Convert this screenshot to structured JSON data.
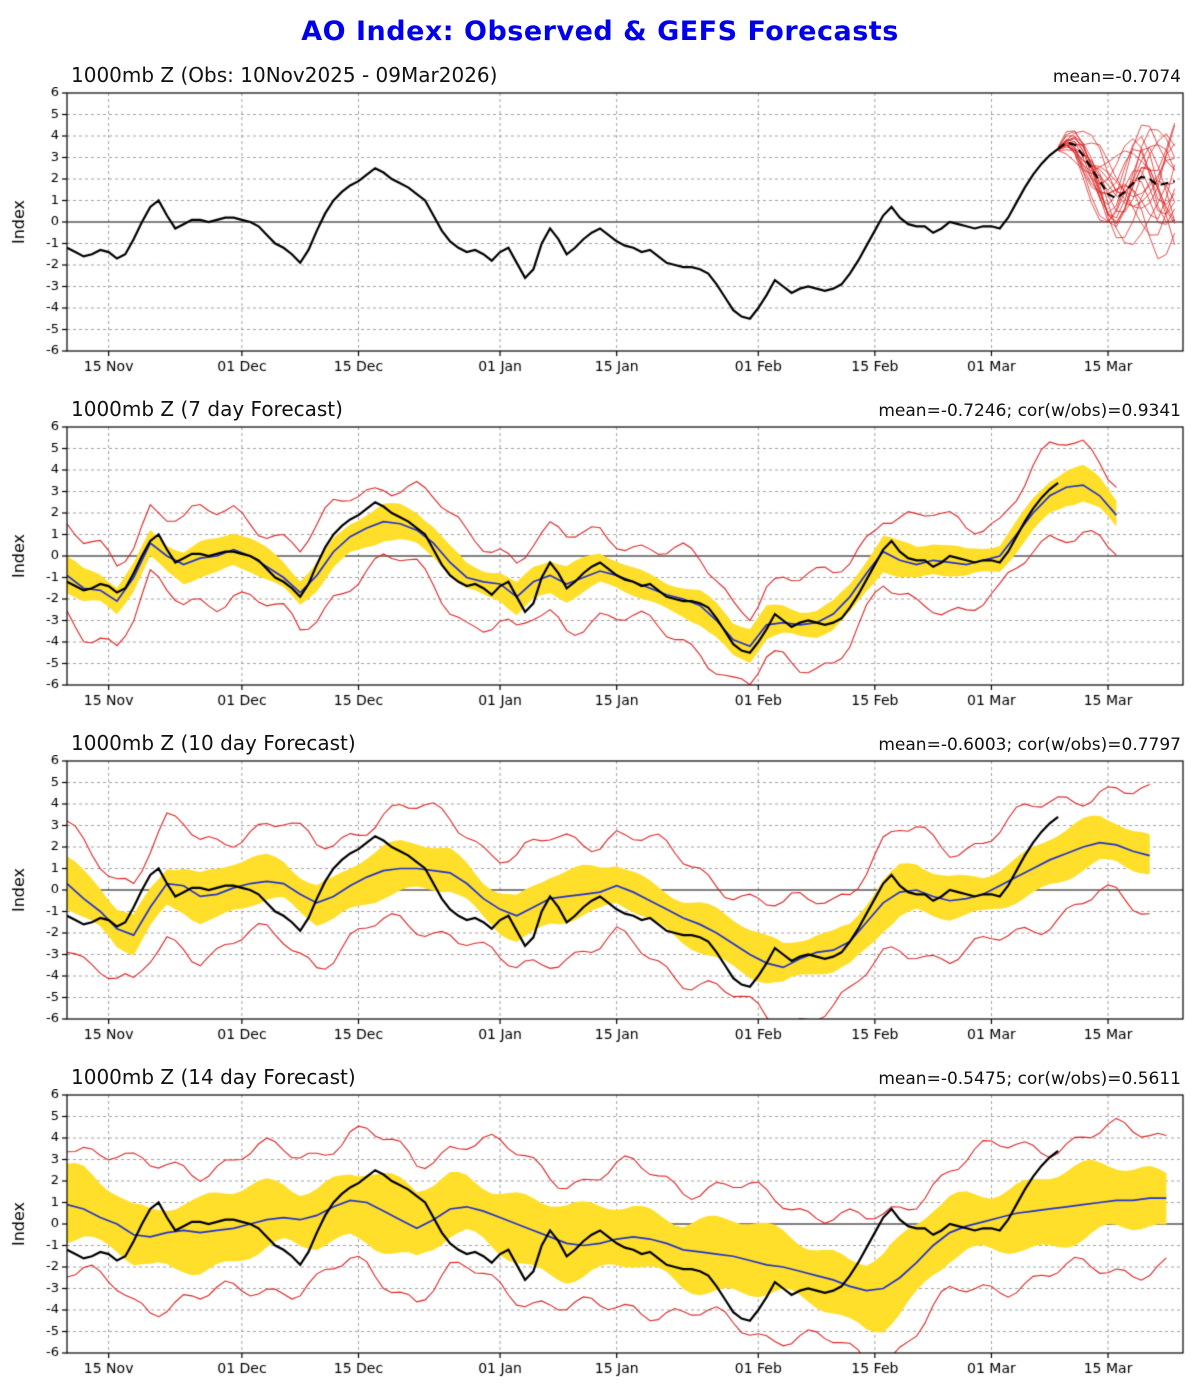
{
  "title": "AO Index: Observed & GEFS Forecasts",
  "chart_data": {
    "type": "line",
    "title": "AO Index: Observed & GEFS Forecasts",
    "ylabel": "Index",
    "ymin": -6,
    "ymax": 6,
    "dmin": 0,
    "dmax": 134,
    "grid": "on",
    "xticks": [
      {
        "d": 5,
        "label": "15 Nov"
      },
      {
        "d": 21,
        "label": "01 Dec"
      },
      {
        "d": 35,
        "label": "15 Dec"
      },
      {
        "d": 52,
        "label": "01 Jan"
      },
      {
        "d": 66,
        "label": "15 Jan"
      },
      {
        "d": 83,
        "label": "01 Feb"
      },
      {
        "d": 97,
        "label": "15 Feb"
      },
      {
        "d": 111,
        "label": "01 Mar"
      },
      {
        "d": 125,
        "label": "15 Mar"
      }
    ],
    "obs_start_date": "10Nov2025",
    "obs_end_date": "09Mar2026",
    "obs": [
      -1.2,
      -1.4,
      -1.6,
      -1.5,
      -1.3,
      -1.4,
      -1.7,
      -1.5,
      -0.8,
      0.0,
      0.7,
      1.0,
      0.3,
      -0.3,
      -0.1,
      0.1,
      0.1,
      0.0,
      0.1,
      0.2,
      0.2,
      0.1,
      0.0,
      -0.2,
      -0.6,
      -1.0,
      -1.2,
      -1.5,
      -1.9,
      -1.3,
      -0.4,
      0.4,
      1.0,
      1.4,
      1.7,
      1.9,
      2.2,
      2.5,
      2.3,
      2.0,
      1.8,
      1.6,
      1.3,
      1.0,
      0.3,
      -0.4,
      -0.9,
      -1.2,
      -1.4,
      -1.3,
      -1.5,
      -1.8,
      -1.4,
      -1.2,
      -1.9,
      -2.6,
      -2.2,
      -1.0,
      -0.3,
      -0.8,
      -1.5,
      -1.2,
      -0.8,
      -0.5,
      -0.3,
      -0.6,
      -0.9,
      -1.1,
      -1.2,
      -1.4,
      -1.3,
      -1.6,
      -1.9,
      -2.0,
      -2.1,
      -2.1,
      -2.2,
      -2.4,
      -2.9,
      -3.5,
      -4.1,
      -4.4,
      -4.5,
      -4.0,
      -3.4,
      -2.7,
      -3.0,
      -3.3,
      -3.1,
      -3.0,
      -3.1,
      -3.2,
      -3.1,
      -2.9,
      -2.4,
      -1.8,
      -1.1,
      -0.4,
      0.3,
      0.7,
      0.2,
      -0.1,
      -0.2,
      -0.2,
      -0.5,
      -0.3,
      0.0,
      -0.1,
      -0.2,
      -0.3,
      -0.2,
      -0.2,
      -0.3,
      0.2,
      0.9,
      1.6,
      2.2,
      2.7,
      3.1,
      3.4
    ],
    "ens_mean": [
      3.4,
      3.7,
      3.6,
      3.1,
      2.5,
      1.9,
      1.3,
      1.1,
      1.4,
      1.8,
      2.1,
      2.0,
      1.7,
      1.8,
      1.9
    ],
    "ens_spread": [
      0.05,
      0.3,
      0.5,
      0.7,
      0.9,
      1.1,
      1.2,
      1.3,
      1.4,
      1.5,
      1.6,
      1.7,
      1.8,
      1.9,
      2.0
    ],
    "panels": [
      {
        "kind": "obs_ensemble",
        "title": "1000mb Z (Obs: 10Nov2025 - 09Mar2026)",
        "stats": "mean=-0.7074",
        "members": 21
      },
      {
        "kind": "forecast",
        "title": "1000mb Z (7 day Forecast)",
        "stats": "mean=-0.7246; cor(w/obs)=0.9341",
        "step": 2,
        "band": 0.7,
        "envelope": 1.9,
        "seed": 1.0,
        "mean_series": [
          -0.9,
          -1.5,
          -1.6,
          -2.1,
          -1.0,
          0.6,
          0.0,
          -0.4,
          -0.1,
          0.0,
          0.3,
          0.0,
          -0.5,
          -1.0,
          -1.7,
          -0.9,
          0.2,
          0.9,
          1.3,
          1.6,
          1.5,
          1.2,
          0.6,
          -0.3,
          -1.0,
          -1.2,
          -1.3,
          -1.9,
          -1.2,
          -0.9,
          -1.3,
          -1.0,
          -0.7,
          -0.9,
          -1.2,
          -1.5,
          -1.8,
          -2.0,
          -2.3,
          -3.0,
          -3.9,
          -4.2,
          -3.2,
          -3.1,
          -3.2,
          -3.1,
          -2.7,
          -1.9,
          -0.8,
          0.2,
          -0.2,
          -0.4,
          -0.2,
          -0.3,
          -0.4,
          -0.2,
          0.0,
          1.0,
          2.0,
          2.8,
          3.2,
          3.3,
          2.8,
          1.9
        ]
      },
      {
        "kind": "forecast",
        "title": "1000mb Z (10 day Forecast)",
        "stats": "mean=-0.6003; cor(w/obs)=0.7797",
        "step": 2,
        "band": 1.0,
        "envelope": 2.6,
        "seed": 2.3,
        "mean_series": [
          0.3,
          -0.4,
          -1.0,
          -1.8,
          -2.1,
          -0.8,
          0.3,
          0.2,
          -0.3,
          -0.2,
          0.1,
          0.3,
          0.4,
          0.3,
          -0.2,
          -0.6,
          -0.3,
          0.2,
          0.6,
          0.9,
          1.0,
          1.0,
          0.9,
          0.8,
          0.3,
          -0.4,
          -0.9,
          -1.2,
          -0.8,
          -0.4,
          -0.3,
          -0.2,
          -0.1,
          0.2,
          -0.1,
          -0.5,
          -0.9,
          -1.3,
          -1.6,
          -2.0,
          -2.5,
          -3.0,
          -3.4,
          -3.6,
          -3.2,
          -2.9,
          -2.8,
          -2.4,
          -1.5,
          -0.6,
          -0.1,
          0.0,
          -0.3,
          -0.5,
          -0.4,
          -0.2,
          0.2,
          0.6,
          1.0,
          1.4,
          1.7,
          2.0,
          2.2,
          2.1,
          1.8,
          1.6
        ]
      },
      {
        "kind": "forecast",
        "title": "1000mb Z (14 day Forecast)",
        "stats": "mean=-0.5475; cor(w/obs)=0.5611",
        "step": 2,
        "band": 1.5,
        "envelope": 3.1,
        "seed": 4.1,
        "mean_series": [
          0.9,
          0.7,
          0.3,
          0.0,
          -0.5,
          -0.6,
          -0.4,
          -0.3,
          -0.4,
          -0.3,
          -0.2,
          0.0,
          0.2,
          0.3,
          0.2,
          0.4,
          0.8,
          1.1,
          1.0,
          0.6,
          0.2,
          -0.2,
          0.2,
          0.7,
          0.8,
          0.6,
          0.3,
          0.0,
          -0.3,
          -0.6,
          -0.9,
          -1.0,
          -0.9,
          -0.7,
          -0.6,
          -0.7,
          -0.9,
          -1.2,
          -1.3,
          -1.4,
          -1.5,
          -1.7,
          -1.9,
          -2.0,
          -2.2,
          -2.4,
          -2.6,
          -2.9,
          -3.1,
          -3.0,
          -2.5,
          -1.8,
          -1.0,
          -0.4,
          -0.1,
          0.1,
          0.3,
          0.5,
          0.6,
          0.7,
          0.8,
          0.9,
          1.0,
          1.1,
          1.1,
          1.2,
          1.2
        ]
      }
    ],
    "colors": {
      "observed": "#000000",
      "ensemble_member": "#dd2626",
      "ensemble_mean_dashed": "#000000",
      "forecast_mean": "#2233cc",
      "spread_band": "#ffdf29",
      "envelope": "#dd2626",
      "grid": "#999999",
      "title": "#0000ee"
    }
  }
}
